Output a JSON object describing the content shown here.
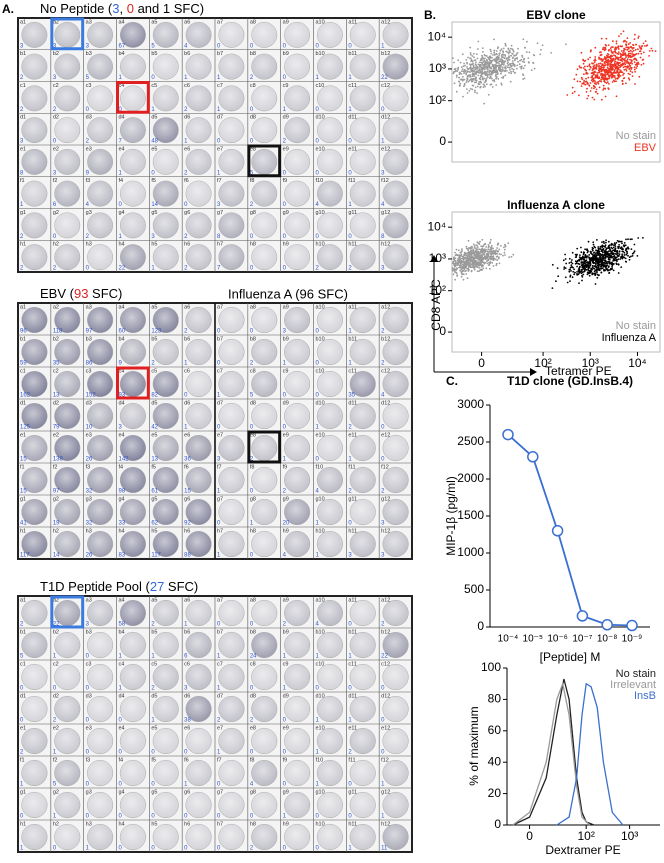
{
  "panel_a": {
    "label": "A.",
    "well_labels": [
      [
        "a1",
        "a2",
        "a3",
        "a4",
        "a5",
        "a6",
        "a7",
        "a8",
        "a9",
        "a10",
        "a11",
        "a12"
      ],
      [
        "b1",
        "b2",
        "b3",
        "b4",
        "b5",
        "b6",
        "b7",
        "b8",
        "b9",
        "b10",
        "b11",
        "b12"
      ],
      [
        "c1",
        "c2",
        "c3",
        "c4",
        "c5",
        "c6",
        "c7",
        "c8",
        "c9",
        "c10",
        "c11",
        "c12"
      ],
      [
        "d1",
        "d2",
        "d3",
        "d4",
        "d5",
        "d6",
        "d7",
        "d8",
        "d9",
        "d10",
        "d11",
        "d12"
      ],
      [
        "e1",
        "e2",
        "e3",
        "e4",
        "e5",
        "e6",
        "e7",
        "e8",
        "e9",
        "e10",
        "e11",
        "e12"
      ],
      [
        "f1",
        "f2",
        "f3",
        "f4",
        "f5",
        "f6",
        "f7",
        "f8",
        "f9",
        "f10",
        "f11",
        "f12"
      ],
      [
        "g1",
        "g2",
        "g3",
        "g4",
        "g5",
        "g6",
        "g7",
        "g8",
        "g9",
        "g10",
        "g11",
        "g12"
      ],
      [
        "h1",
        "h2",
        "h3",
        "h4",
        "h5",
        "h6",
        "h7",
        "h8",
        "h9",
        "h10",
        "h11",
        "h12"
      ]
    ],
    "plates": [
      {
        "title_parts": [
          "No Peptide (",
          "3",
          ", ",
          "0",
          " and 1 SFC)"
        ],
        "title_colors": [
          "#000000",
          "#3366dd",
          "#000000",
          "#dd2222",
          "#000000"
        ],
        "counts": [
          [
            3,
            3,
            3,
            67,
            5,
            4,
            0,
            0,
            0,
            0,
            0,
            1
          ],
          [
            2,
            3,
            5,
            1,
            0,
            1,
            1,
            2,
            0,
            1,
            1,
            22
          ],
          [
            2,
            2,
            0,
            0,
            1,
            2,
            1,
            0,
            1,
            0,
            1,
            0
          ],
          [
            3,
            0,
            2,
            7,
            48,
            1,
            0,
            0,
            2,
            0,
            0,
            1
          ],
          [
            8,
            3,
            9,
            1,
            0,
            2,
            1,
            5,
            0,
            0,
            0,
            3
          ],
          [
            1,
            6,
            4,
            0,
            14,
            0,
            3,
            2,
            0,
            4,
            1,
            4
          ],
          [
            2,
            0,
            2,
            1,
            3,
            2,
            8,
            0,
            0,
            0,
            0,
            8
          ],
          [
            2,
            2,
            0,
            22,
            1,
            2,
            7,
            0,
            0,
            2,
            2,
            3
          ]
        ]
      },
      {
        "title_parts": [
          "EBV (",
          "93",
          " SFC)"
        ],
        "title_colors": [
          "#000000",
          "#dd2222",
          "#000000"
        ],
        "title2": "Influenza A (96 SFC)",
        "counts": [
          [
            96,
            118,
            97,
            60,
            123,
            2,
            0,
            0,
            3,
            0,
            1,
            2
          ],
          [
            59,
            35,
            86,
            9,
            2,
            1,
            0,
            2,
            1,
            0,
            1,
            2
          ],
          [
            162,
            13,
            152,
            93,
            82,
            0,
            1,
            5,
            0,
            0,
            35,
            4
          ],
          [
            125,
            79,
            10,
            3,
            42,
            1,
            0,
            0,
            0,
            1,
            2,
            0
          ],
          [
            15,
            138,
            26,
            142,
            13,
            36,
            3,
            2,
            1,
            0,
            1,
            0
          ],
          [
            15,
            97,
            32,
            98,
            61,
            15,
            1,
            0,
            2,
            4,
            2,
            2
          ],
          [
            41,
            19,
            32,
            33,
            62,
            92,
            0,
            1,
            20,
            1,
            0,
            3
          ],
          [
            117,
            14,
            26,
            83,
            117,
            88,
            1,
            0,
            4,
            1,
            3,
            3
          ]
        ]
      },
      {
        "title_parts": [
          "T1D Peptide Pool (",
          "27",
          " SFC)"
        ],
        "title_colors": [
          "#000000",
          "#3366dd",
          "#000000"
        ],
        "counts": [
          [
            2,
            22,
            3,
            58,
            2,
            1,
            0,
            0,
            2,
            4,
            0,
            2
          ],
          [
            5,
            1,
            0,
            1,
            1,
            6,
            1,
            24,
            1,
            1,
            1,
            22
          ],
          [
            0,
            0,
            0,
            1,
            2,
            3,
            1,
            0,
            1,
            0,
            0,
            0
          ],
          [
            0,
            2,
            0,
            0,
            1,
            38,
            2,
            2,
            0,
            1,
            1,
            0
          ],
          [
            2,
            1,
            0,
            0,
            0,
            0,
            1,
            0,
            0,
            1,
            2,
            0
          ],
          [
            1,
            5,
            0,
            0,
            0,
            1,
            0,
            4,
            0,
            1,
            0,
            1
          ],
          [
            0,
            1,
            0,
            0,
            0,
            0,
            0,
            0,
            1,
            0,
            0,
            1
          ],
          [
            1,
            0,
            1,
            0,
            0,
            0,
            0,
            2,
            0,
            0,
            1,
            11
          ]
        ]
      }
    ]
  },
  "panel_b_label": "B.",
  "panel_c_label": "C.",
  "chart_data": [
    {
      "type": "scatter",
      "title": "EBV clone",
      "xscale": "biexponential",
      "yscale": "biexponential",
      "xlim": [
        -20,
        30000
      ],
      "ylim": [
        -20,
        30000
      ],
      "yticks": [
        0,
        {
          "value": 100,
          "label": "10²"
        },
        {
          "value": 1000,
          "label": "10³"
        },
        {
          "value": 10000,
          "label": "10⁴"
        }
      ],
      "series": [
        {
          "name": "No stain",
          "color": "#9a9a9a"
        },
        {
          "name": "EBV",
          "color": "#ee3322"
        }
      ]
    },
    {
      "type": "scatter",
      "title": "Influenza A clone",
      "xscale": "biexponential",
      "yscale": "biexponential",
      "xlim": [
        -20,
        30000
      ],
      "ylim": [
        -20,
        30000
      ],
      "xlabel": "Tetramer PE",
      "ylabel": "CD8 APC",
      "xticks": [
        0,
        {
          "value": 100,
          "label": "10²"
        },
        {
          "value": 1000,
          "label": "10³"
        },
        {
          "value": 10000,
          "label": "10⁴"
        }
      ],
      "yticks": [
        0,
        {
          "value": 100,
          "label": "10²"
        },
        {
          "value": 1000,
          "label": "10³"
        },
        {
          "value": 10000,
          "label": "10⁴"
        }
      ],
      "series": [
        {
          "name": "No stain",
          "color": "#9a9a9a"
        },
        {
          "name": "Influenza A",
          "color": "#000000"
        }
      ]
    },
    {
      "type": "line",
      "title": "T1D clone (GD.InsB.4)",
      "xlabel": "[Peptide] M",
      "ylabel": "MIP-1β (pg/ml)",
      "categories": [
        "10⁻⁴",
        "10⁻⁵",
        "10⁻⁶",
        "10⁻⁷",
        "10⁻⁸",
        "10⁻⁹"
      ],
      "values": [
        2600,
        2300,
        1300,
        150,
        30,
        20
      ],
      "color": "#3b6fd0",
      "ylim": [
        0,
        3000
      ],
      "yticks": [
        0,
        500,
        1000,
        1500,
        2000,
        2500,
        3000
      ]
    },
    {
      "type": "histogram-overlay",
      "xlabel": "Dextramer PE",
      "ylabel": "% of maximum",
      "xscale": "biexponential",
      "xlim": [
        -15,
        5000
      ],
      "ylim": [
        0,
        100
      ],
      "xticks": [
        0,
        {
          "value": 100,
          "label": "10²"
        },
        {
          "value": 1000,
          "label": "10³"
        }
      ],
      "yticks": [
        0,
        20,
        40,
        60,
        80,
        100
      ],
      "legend": "top-right",
      "series": [
        {
          "name": "No stain",
          "color": "#222222",
          "x": [
            -10,
            0,
            10,
            20,
            30,
            40,
            60,
            80,
            100,
            150
          ],
          "values": [
            0,
            5,
            30,
            70,
            93,
            80,
            30,
            8,
            2,
            0
          ]
        },
        {
          "name": "Irrelevant",
          "color": "#999999",
          "x": [
            -10,
            0,
            10,
            20,
            28,
            40,
            60,
            80,
            120
          ],
          "values": [
            0,
            8,
            40,
            80,
            90,
            70,
            25,
            5,
            0
          ]
        },
        {
          "name": "InsB",
          "color": "#3b6fd0",
          "x": [
            20,
            40,
            60,
            80,
            100,
            130,
            180,
            250,
            400,
            700
          ],
          "values": [
            0,
            5,
            30,
            70,
            90,
            88,
            75,
            40,
            8,
            0
          ]
        }
      ]
    }
  ]
}
